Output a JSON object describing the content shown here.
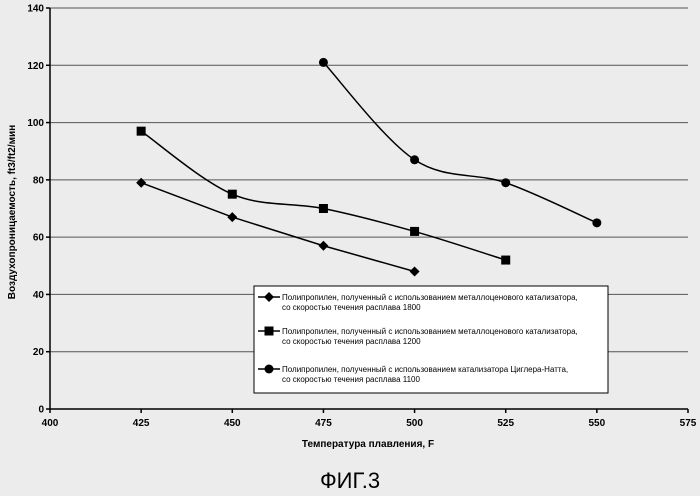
{
  "chart_data": {
    "type": "line",
    "xlabel": "Температура плавления, F",
    "ylabel": "Воздухопроницаемость, ft3/ft2/мин",
    "xlim": [
      400,
      575
    ],
    "ylim": [
      0,
      140
    ],
    "x_ticks": [
      400,
      425,
      450,
      475,
      500,
      525,
      550,
      575
    ],
    "y_ticks": [
      0,
      20,
      40,
      60,
      80,
      100,
      120,
      140
    ],
    "grid": "horizontal",
    "legend_position": "bottom-right",
    "series": [
      {
        "name_lines": [
          "Полипропилен, полученный с использованием металлоценового катализатора,",
          "со скоростью течения расплава 1800"
        ],
        "marker": "diamond",
        "x": [
          425,
          450,
          475,
          500
        ],
        "y": [
          79,
          67,
          57,
          48
        ]
      },
      {
        "name_lines": [
          "Полипропилен, полученный с использованием металлоценового катализатора,",
          "со скоростью течения расплава 1200"
        ],
        "marker": "square",
        "x": [
          425,
          450,
          475,
          500,
          525
        ],
        "y": [
          97,
          75,
          70,
          62,
          52
        ]
      },
      {
        "name_lines": [
          "Полипропилен, полученный с использованием катализатора Циглера-Натта,",
          "со скоростью течения расплава 1100"
        ],
        "marker": "circle",
        "x": [
          475,
          500,
          525,
          550
        ],
        "y": [
          121,
          87,
          79,
          65
        ]
      }
    ]
  },
  "caption": "ФИГ.3"
}
